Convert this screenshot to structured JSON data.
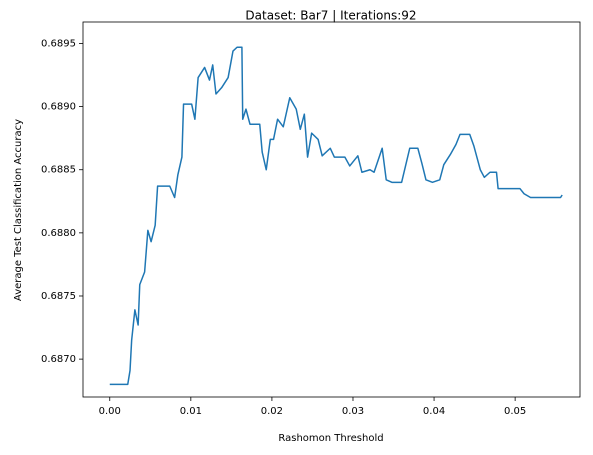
{
  "chart_data": {
    "type": "line",
    "title": "Dataset: Bar7 | Iterations:92",
    "xlabel": "Rashomon Threshold",
    "ylabel": "Average Test Classification Accuracy",
    "color": "#1f77b4",
    "x": [
      0.0,
      0.00222,
      0.0025,
      0.0027,
      0.0031,
      0.0035,
      0.0037,
      0.0043,
      0.0047,
      0.0051,
      0.0056,
      0.0059,
      0.0074,
      0.008,
      0.0084,
      0.0089,
      0.0091,
      0.0101,
      0.0105,
      0.0109,
      0.0117,
      0.0123,
      0.0127,
      0.0131,
      0.0138,
      0.0146,
      0.0152,
      0.0157,
      0.0163,
      0.0164,
      0.0168,
      0.0173,
      0.0185,
      0.0188,
      0.0193,
      0.0198,
      0.0202,
      0.0207,
      0.0214,
      0.0222,
      0.023,
      0.0235,
      0.024,
      0.0244,
      0.0249,
      0.0257,
      0.0262,
      0.0272,
      0.0277,
      0.029,
      0.0296,
      0.0306,
      0.0311,
      0.0321,
      0.0326,
      0.0336,
      0.0341,
      0.0348,
      0.036,
      0.037,
      0.038,
      0.0385,
      0.039,
      0.0398,
      0.0407,
      0.0412,
      0.042,
      0.0427,
      0.0432,
      0.0444,
      0.0449,
      0.0457,
      0.0462,
      0.0469,
      0.0477,
      0.0479,
      0.0506,
      0.0511,
      0.0519,
      0.0556,
      0.0558
    ],
    "values": [
      0.6868,
      0.6868,
      0.68691,
      0.68715,
      0.68739,
      0.68727,
      0.68759,
      0.68769,
      0.68802,
      0.68793,
      0.68806,
      0.68837,
      0.68837,
      0.68828,
      0.68846,
      0.6886,
      0.68902,
      0.68902,
      0.6889,
      0.68923,
      0.68931,
      0.68921,
      0.68933,
      0.6891,
      0.68915,
      0.68923,
      0.68944,
      0.68947,
      0.68947,
      0.6889,
      0.68898,
      0.68886,
      0.68886,
      0.68864,
      0.6885,
      0.68874,
      0.68874,
      0.6889,
      0.68884,
      0.68907,
      0.68898,
      0.68882,
      0.68894,
      0.6886,
      0.68879,
      0.68874,
      0.68861,
      0.68867,
      0.6886,
      0.6886,
      0.68853,
      0.68861,
      0.68848,
      0.6885,
      0.68848,
      0.68867,
      0.68842,
      0.6884,
      0.6884,
      0.68867,
      0.68867,
      0.68855,
      0.68842,
      0.6884,
      0.68842,
      0.68854,
      0.68862,
      0.6887,
      0.68878,
      0.68878,
      0.68869,
      0.6885,
      0.68844,
      0.68848,
      0.68848,
      0.68835,
      0.68835,
      0.68831,
      0.68828,
      0.68828,
      0.6883
    ],
    "xlim": [
      -0.0033,
      0.058
    ],
    "ylim": [
      0.6867,
      0.68967
    ],
    "xticks": [
      {
        "value": 0,
        "label": "0.00"
      },
      {
        "value": 0.01,
        "label": "0.01"
      },
      {
        "value": 0.02,
        "label": "0.02"
      },
      {
        "value": 0.03,
        "label": "0.03"
      },
      {
        "value": 0.04,
        "label": "0.04"
      },
      {
        "value": 0.05,
        "label": "0.05"
      }
    ],
    "yticks": [
      {
        "value": 0.687,
        "label": "0.6870"
      },
      {
        "value": 0.6875,
        "label": "0.6875"
      },
      {
        "value": 0.688,
        "label": "0.6880"
      },
      {
        "value": 0.6885,
        "label": "0.6885"
      },
      {
        "value": 0.689,
        "label": "0.6890"
      },
      {
        "value": 0.6895,
        "label": "0.6895"
      }
    ],
    "grid": false
  }
}
